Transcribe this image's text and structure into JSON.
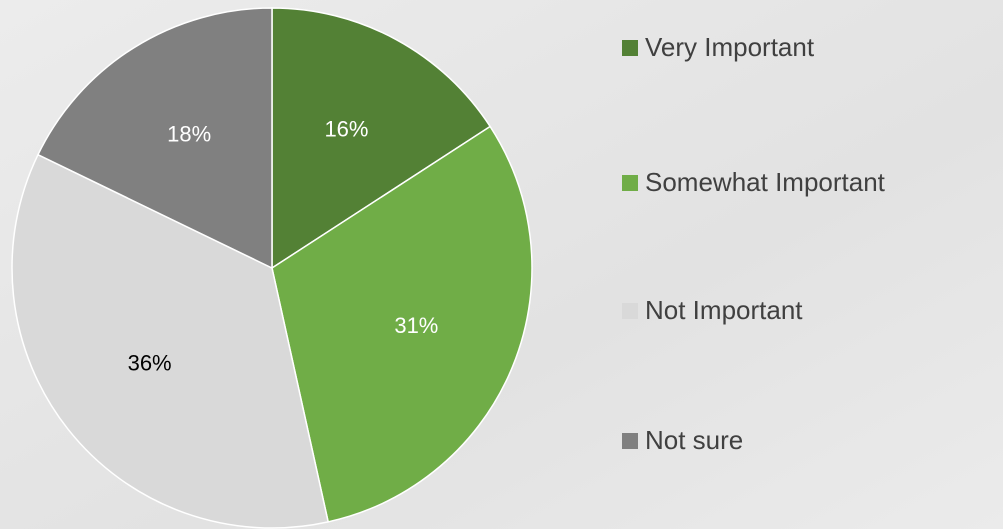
{
  "chart_data": {
    "type": "pie",
    "categories": [
      "Very Important",
      "Somewhat Important",
      "Not Important",
      "Not sure"
    ],
    "values": [
      16,
      31,
      36,
      18
    ],
    "value_labels": [
      "16%",
      "31%",
      "36%",
      "18%"
    ],
    "colors": [
      "#538135",
      "#70ad47",
      "#d9d9d9",
      "#808080"
    ],
    "legend": "right"
  }
}
